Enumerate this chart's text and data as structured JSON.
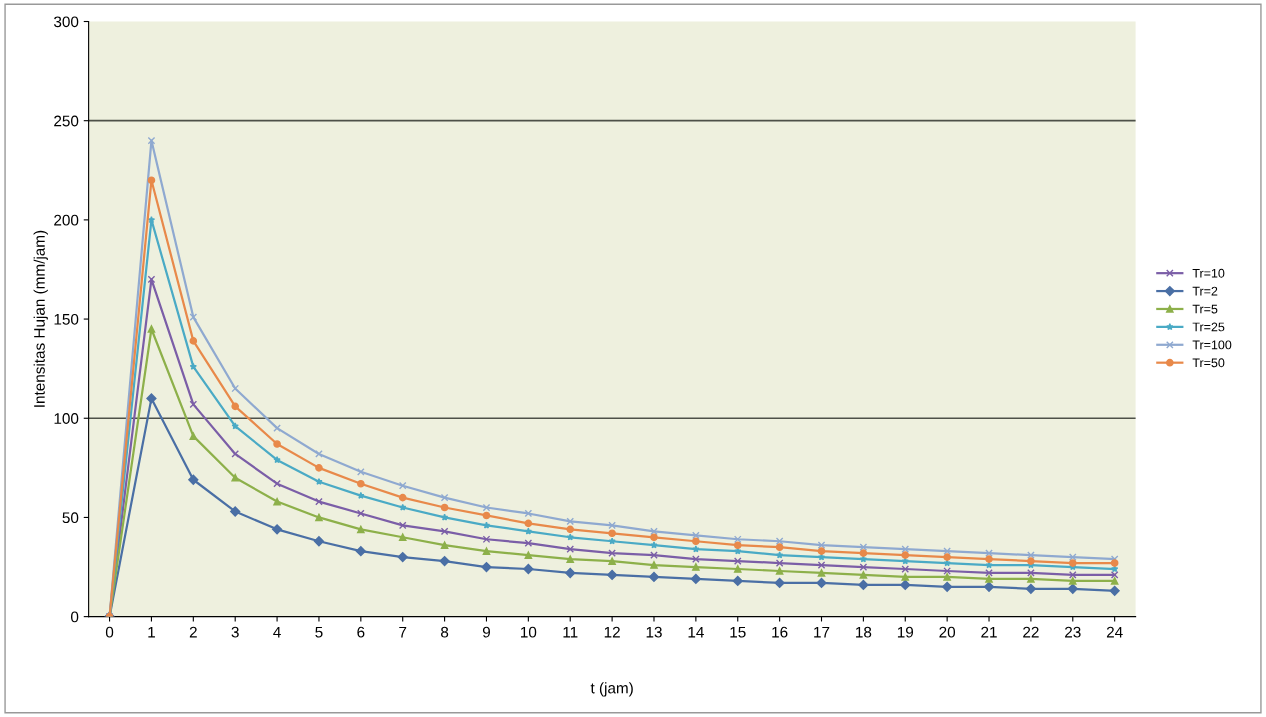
{
  "chart_data": {
    "type": "line",
    "xlabel": "t (jam)",
    "ylabel": "Intensitas Hujan (mm/jam)",
    "categories": [
      "0",
      "1",
      "2",
      "3",
      "4",
      "5",
      "6",
      "7",
      "8",
      "9",
      "10",
      "11",
      "12",
      "13",
      "14",
      "15",
      "16",
      "17",
      "18",
      "19",
      "20",
      "21",
      "22",
      "23",
      "24"
    ],
    "ylim": [
      0,
      300
    ],
    "yticks": [
      0,
      50,
      100,
      150,
      200,
      250,
      300
    ],
    "legend": "right",
    "ref_lines": [
      {
        "axis": "y",
        "value": 100,
        "color": "#4d5048"
      },
      {
        "axis": "y",
        "value": 250,
        "color": "#4d5048"
      }
    ],
    "series": [
      {
        "name": "Tr=10",
        "color": "#7b5ea7",
        "marker": "cross",
        "values": [
          0,
          170,
          107,
          82,
          67,
          58,
          52,
          46,
          43,
          39,
          37,
          34,
          32,
          31,
          29,
          28,
          27,
          26,
          25,
          24,
          23,
          22,
          22,
          21,
          21
        ]
      },
      {
        "name": "Tr=2",
        "color": "#4a6fa5",
        "marker": "diamond",
        "values": [
          0,
          110,
          69,
          53,
          44,
          38,
          33,
          30,
          28,
          25,
          24,
          22,
          21,
          20,
          19,
          18,
          17,
          17,
          16,
          16,
          15,
          15,
          14,
          14,
          13
        ]
      },
      {
        "name": "Tr=5",
        "color": "#8db04a",
        "marker": "triangle",
        "values": [
          0,
          145,
          91,
          70,
          58,
          50,
          44,
          40,
          36,
          33,
          31,
          29,
          28,
          26,
          25,
          24,
          23,
          22,
          21,
          20,
          20,
          19,
          19,
          18,
          18
        ]
      },
      {
        "name": "Tr=25",
        "color": "#4aaac5",
        "marker": "star",
        "values": [
          0,
          200,
          126,
          96,
          79,
          68,
          61,
          55,
          50,
          46,
          43,
          40,
          38,
          36,
          34,
          33,
          31,
          30,
          29,
          28,
          27,
          26,
          26,
          25,
          24
        ]
      },
      {
        "name": "Tr=100",
        "color": "#8fa9d0",
        "marker": "cross",
        "values": [
          0,
          240,
          151,
          115,
          95,
          82,
          73,
          66,
          60,
          55,
          52,
          48,
          46,
          43,
          41,
          39,
          38,
          36,
          35,
          34,
          33,
          32,
          31,
          30,
          29
        ]
      },
      {
        "name": "Tr=50",
        "color": "#e8894a",
        "marker": "circle",
        "values": [
          0,
          220,
          139,
          106,
          87,
          75,
          67,
          60,
          55,
          51,
          47,
          44,
          42,
          40,
          38,
          36,
          35,
          33,
          32,
          31,
          30,
          29,
          28,
          27,
          27
        ]
      }
    ]
  }
}
